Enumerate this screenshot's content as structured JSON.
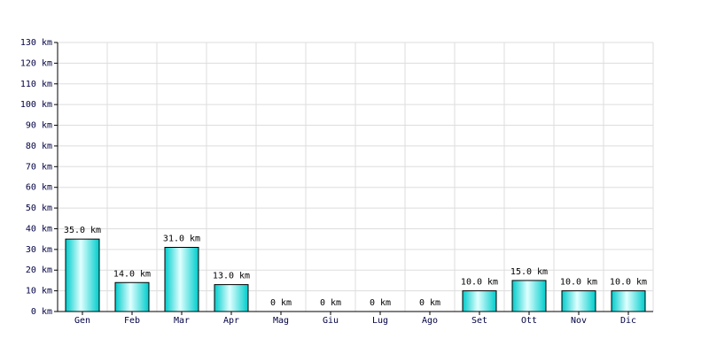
{
  "chart_data": {
    "type": "bar",
    "categories": [
      "Gen",
      "Feb",
      "Mar",
      "Apr",
      "Mag",
      "Giu",
      "Lug",
      "Ago",
      "Set",
      "Ott",
      "Nov",
      "Dic"
    ],
    "values": [
      35,
      14,
      31,
      13,
      0,
      0,
      0,
      0,
      10,
      15,
      10,
      10
    ],
    "value_labels": [
      "35.0 km",
      "14.0 km",
      "31.0 km",
      "13.0 km",
      "0 km",
      "0 km",
      "0 km",
      "0 km",
      "10.0 km",
      "15.0 km",
      "10.0 km",
      "10.0 km"
    ],
    "color": "#00cccc",
    "ylim": [
      0,
      130
    ],
    "yticks": [
      {
        "value": 0,
        "label": "0 km"
      },
      {
        "value": 10,
        "label": "10 km"
      },
      {
        "value": 20,
        "label": "20 km"
      },
      {
        "value": 30,
        "label": "30 km"
      },
      {
        "value": 40,
        "label": "40 km"
      },
      {
        "value": 50,
        "label": "50 km"
      },
      {
        "value": 60,
        "label": "60 km"
      },
      {
        "value": 70,
        "label": "70 km"
      },
      {
        "value": 80,
        "label": "80 km"
      },
      {
        "value": 90,
        "label": "90 km"
      },
      {
        "value": 100,
        "label": "100 km"
      },
      {
        "value": 110,
        "label": "110 km"
      },
      {
        "value": 120,
        "label": "120 km"
      },
      {
        "value": 130,
        "label": "130 km"
      }
    ],
    "grid": true
  }
}
